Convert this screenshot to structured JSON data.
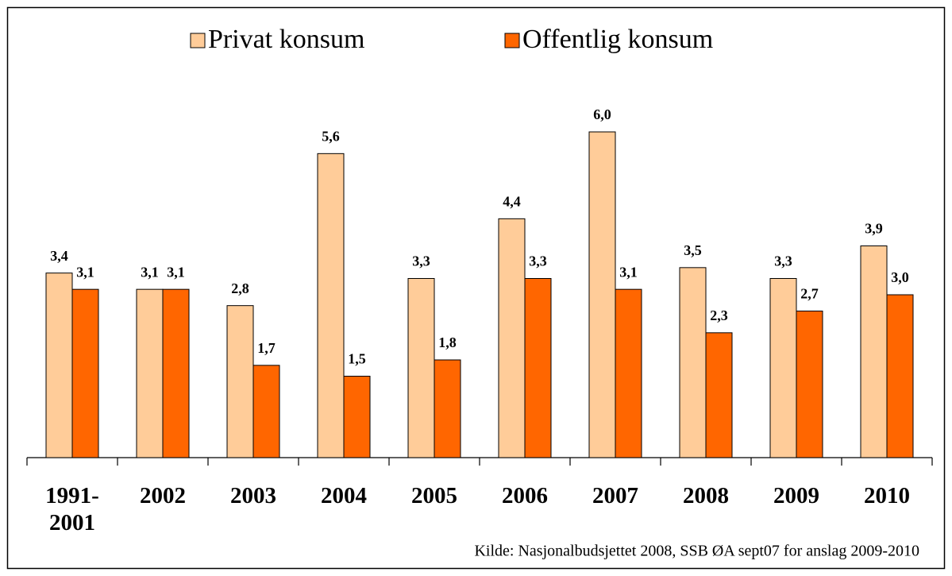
{
  "chart_data": {
    "type": "bar",
    "categories": [
      "1991-2001",
      "2002",
      "2003",
      "2004",
      "2005",
      "2006",
      "2007",
      "2008",
      "2009",
      "2010"
    ],
    "series": [
      {
        "name": "Privat konsum",
        "color": "#ffcc99",
        "values": [
          3.4,
          3.1,
          2.8,
          5.6,
          3.3,
          4.4,
          6.0,
          3.5,
          3.3,
          3.9
        ],
        "value_labels": [
          "3,4",
          "3,1",
          "2,8",
          "5,6",
          "3,3",
          "4,4",
          "6,0",
          "3,5",
          "3,3",
          "3,9"
        ]
      },
      {
        "name": "Offentlig konsum",
        "color": "#ff6600",
        "values": [
          3.1,
          3.1,
          1.7,
          1.5,
          1.8,
          3.3,
          3.1,
          2.3,
          2.7,
          3.0
        ],
        "value_labels": [
          "3,1",
          "3,1",
          "1,7",
          "1,5",
          "1,8",
          "3,3",
          "3,1",
          "2,3",
          "2,7",
          "3,0"
        ]
      }
    ],
    "legend": "top",
    "source": "Kilde: Nasjonalbudsjettet 2008, SSB ØA sept07 for anslag 2009-2010"
  }
}
